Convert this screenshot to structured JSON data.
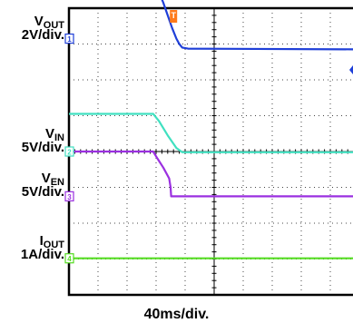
{
  "chart_data": {
    "type": "line",
    "x_unit_label": "40ms/div.",
    "x_divisions": 10,
    "y_divisions": 8,
    "grid": true,
    "trigger_marker": "T",
    "series": [
      {
        "name": "VOUT",
        "symbol": "V",
        "subscript": "OUT",
        "scale": "2V/div.",
        "channel": "1",
        "color": "#1f3fd8",
        "level_label_div": 7.15,
        "points": [
          [
            0,
            8.85
          ],
          [
            2.85,
            8.85
          ],
          [
            2.95,
            8.7
          ],
          [
            3.1,
            8.45
          ],
          [
            3.25,
            8.15
          ],
          [
            3.4,
            7.8
          ],
          [
            3.55,
            7.45
          ],
          [
            3.7,
            7.15
          ],
          [
            3.8,
            7.0
          ],
          [
            3.9,
            6.9
          ],
          [
            4.1,
            6.87
          ],
          [
            10,
            6.85
          ]
        ]
      },
      {
        "name": "VIN",
        "symbol": "V",
        "subscript": "IN",
        "scale": "5V/div.",
        "channel": "2",
        "color": "#40e0c0",
        "level_label_div": 4.0,
        "points": [
          [
            0,
            5.05
          ],
          [
            2.9,
            5.05
          ],
          [
            3.1,
            4.85
          ],
          [
            3.4,
            4.45
          ],
          [
            3.7,
            4.1
          ],
          [
            3.9,
            3.98
          ],
          [
            10,
            3.98
          ]
        ]
      },
      {
        "name": "VEN",
        "symbol": "V",
        "subscript": "EN",
        "scale": "5V/div.",
        "channel": "3",
        "color": "#9b30e0",
        "level_label_div": 2.75,
        "points": [
          [
            0,
            4.0
          ],
          [
            2.9,
            4.0
          ],
          [
            3.05,
            3.8
          ],
          [
            3.25,
            3.55
          ],
          [
            3.45,
            3.25
          ],
          [
            3.5,
            3.0
          ],
          [
            3.52,
            2.75
          ],
          [
            10,
            2.75
          ]
        ]
      },
      {
        "name": "IOUT",
        "symbol": "I",
        "subscript": "OUT",
        "scale": "1A/div.",
        "channel": "4",
        "color": "#55dd22",
        "level_label_div": 1.02,
        "points": [
          [
            0,
            1.02
          ],
          [
            10,
            1.02
          ]
        ]
      }
    ]
  }
}
